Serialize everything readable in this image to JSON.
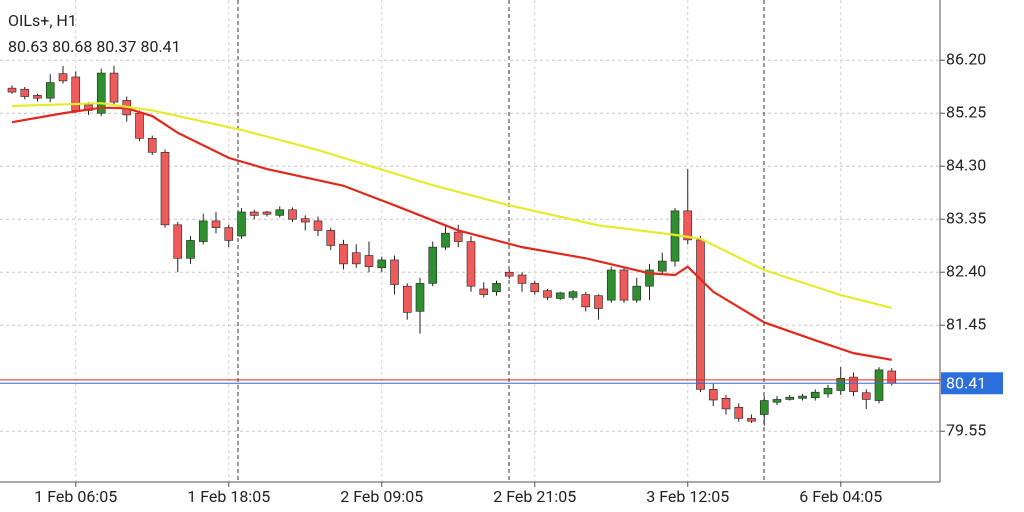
{
  "chart_data": {
    "type": "candlestick",
    "title": "OILs+, H1",
    "subtitle": "80.63 80.68 80.37 80.41",
    "categories": [
      null,
      null,
      null,
      null,
      null,
      "1 Feb 06:05",
      null,
      null,
      null,
      null,
      null,
      null,
      null,
      null,
      null,
      null,
      null,
      "1 Feb 18:05",
      null,
      null,
      null,
      null,
      null,
      null,
      null,
      null,
      null,
      null,
      null,
      "2 Feb 09:05",
      null,
      null,
      null,
      null,
      null,
      null,
      null,
      null,
      null,
      null,
      null,
      "2 Feb 21:05",
      null,
      null,
      null,
      null,
      null,
      null,
      null,
      null,
      null,
      null,
      null,
      "3 Feb 12:05",
      null,
      null,
      null,
      null,
      null,
      null,
      null,
      null,
      null,
      null,
      null,
      "6 Feb 04:05",
      null,
      null,
      null,
      null
    ],
    "open": [
      85.7,
      85.68,
      85.57,
      85.52,
      85.96,
      85.9,
      85.4,
      85.25,
      85.97,
      85.48,
      85.25,
      84.8,
      84.55,
      83.25,
      82.65,
      82.95,
      83.32,
      83.2,
      83.05,
      83.48,
      83.48,
      83.42,
      83.52,
      83.36,
      83.32,
      83.15,
      82.9,
      82.75,
      82.7,
      82.48,
      82.62,
      82.15,
      81.7,
      82.2,
      82.85,
      83.12,
      82.95,
      82.1,
      82.05,
      82.4,
      82.35,
      82.2,
      82.07,
      81.93,
      81.95,
      82.0,
      81.98,
      81.9,
      82.44,
      81.9,
      82.15,
      82.42,
      82.6,
      83.5,
      82.98,
      80.3,
      80.14,
      79.98,
      79.78,
      79.85,
      80.07,
      80.12,
      80.14,
      80.15,
      80.22,
      80.28,
      80.52,
      80.24,
      80.1,
      80.63
    ],
    "high": [
      85.75,
      85.72,
      85.6,
      85.95,
      86.1,
      86.0,
      85.45,
      86.05,
      86.1,
      85.55,
      85.3,
      84.85,
      84.6,
      83.3,
      83.05,
      83.45,
      83.48,
      83.25,
      83.55,
      83.52,
      83.5,
      83.58,
      83.56,
      83.42,
      83.4,
      83.2,
      82.98,
      82.9,
      82.95,
      82.68,
      82.7,
      82.2,
      82.3,
      82.95,
      83.25,
      83.25,
      83.05,
      82.22,
      82.25,
      82.45,
      82.4,
      82.25,
      82.1,
      82.05,
      82.08,
      82.05,
      82.0,
      82.5,
      82.5,
      82.3,
      82.55,
      82.75,
      83.55,
      84.25,
      83.05,
      80.4,
      80.2,
      80.05,
      79.85,
      80.18,
      80.18,
      80.2,
      80.22,
      80.3,
      80.38,
      80.7,
      80.6,
      80.3,
      80.7,
      80.68
    ],
    "low": [
      85.6,
      85.5,
      85.46,
      85.45,
      85.78,
      85.25,
      85.22,
      85.2,
      85.4,
      85.1,
      84.75,
      84.5,
      83.2,
      82.4,
      82.55,
      82.9,
      83.1,
      82.85,
      83.0,
      83.35,
      83.4,
      83.38,
      83.3,
      83.15,
      83.05,
      82.8,
      82.45,
      82.48,
      82.4,
      82.4,
      82.0,
      81.55,
      81.3,
      82.15,
      82.8,
      82.85,
      82.05,
      81.95,
      81.98,
      82.28,
      82.05,
      82.0,
      81.9,
      81.9,
      81.9,
      81.7,
      81.55,
      81.85,
      81.85,
      81.85,
      81.9,
      82.35,
      82.5,
      82.9,
      80.25,
      80.0,
      79.85,
      79.72,
      79.7,
      79.65,
      80.02,
      80.1,
      80.1,
      80.1,
      80.15,
      80.2,
      80.18,
      79.95,
      80.05,
      80.37
    ],
    "close": [
      85.63,
      85.55,
      85.52,
      85.8,
      85.83,
      85.3,
      85.3,
      85.97,
      85.45,
      85.22,
      84.8,
      84.55,
      83.25,
      82.65,
      82.97,
      83.32,
      83.2,
      82.97,
      83.48,
      83.42,
      83.44,
      83.52,
      83.35,
      83.3,
      83.15,
      82.88,
      82.55,
      82.55,
      82.5,
      82.62,
      82.18,
      81.68,
      82.2,
      82.85,
      83.1,
      82.95,
      82.15,
      82.0,
      82.2,
      82.33,
      82.2,
      82.05,
      81.95,
      82.03,
      82.05,
      81.78,
      81.75,
      82.44,
      81.9,
      82.15,
      82.44,
      82.6,
      83.5,
      82.98,
      80.3,
      80.11,
      79.95,
      79.78,
      79.73,
      80.1,
      80.12,
      80.16,
      80.18,
      80.25,
      80.32,
      80.5,
      80.26,
      80.12,
      80.65,
      80.41
    ],
    "up_color": "#2f8f2f",
    "down_color": "#ef5b5b",
    "series": [
      {
        "color": "#e02a1e",
        "x": [
          0,
          4,
          7,
          9,
          11,
          13,
          17,
          20,
          26,
          30,
          35,
          40,
          45,
          50,
          52,
          53,
          55,
          59,
          63,
          66,
          69
        ],
        "values": [
          85.09,
          85.25,
          85.35,
          85.34,
          85.2,
          84.9,
          84.45,
          84.25,
          83.95,
          83.6,
          83.15,
          82.85,
          82.65,
          82.38,
          82.35,
          82.5,
          82.05,
          81.5,
          81.18,
          80.95,
          80.83
        ]
      },
      {
        "color": "#e4ec2e",
        "x": [
          0,
          7,
          11,
          18,
          24,
          33,
          39,
          46,
          52,
          54,
          59,
          65,
          69
        ],
        "values": [
          85.38,
          85.43,
          85.3,
          84.95,
          84.59,
          83.96,
          83.6,
          83.24,
          83.07,
          83.0,
          82.44,
          81.99,
          81.76
        ]
      }
    ],
    "last_price": 80.41,
    "last_price_color": "#2a6fdb",
    "ask_price": 80.47,
    "ask_color": "#e02a1e",
    "ylim": [
      78.64,
      87.28
    ],
    "yticks": [
      {
        "value": 86.2,
        "label": "86.20"
      },
      {
        "value": 85.25,
        "label": "85.25"
      },
      {
        "value": 84.3,
        "label": "84.30"
      },
      {
        "value": 83.35,
        "label": "83.35"
      },
      {
        "value": 82.4,
        "label": "82.40"
      },
      {
        "value": 81.45,
        "label": "81.45"
      },
      {
        "value": 79.55,
        "label": "79.55"
      }
    ],
    "grid": true
  }
}
